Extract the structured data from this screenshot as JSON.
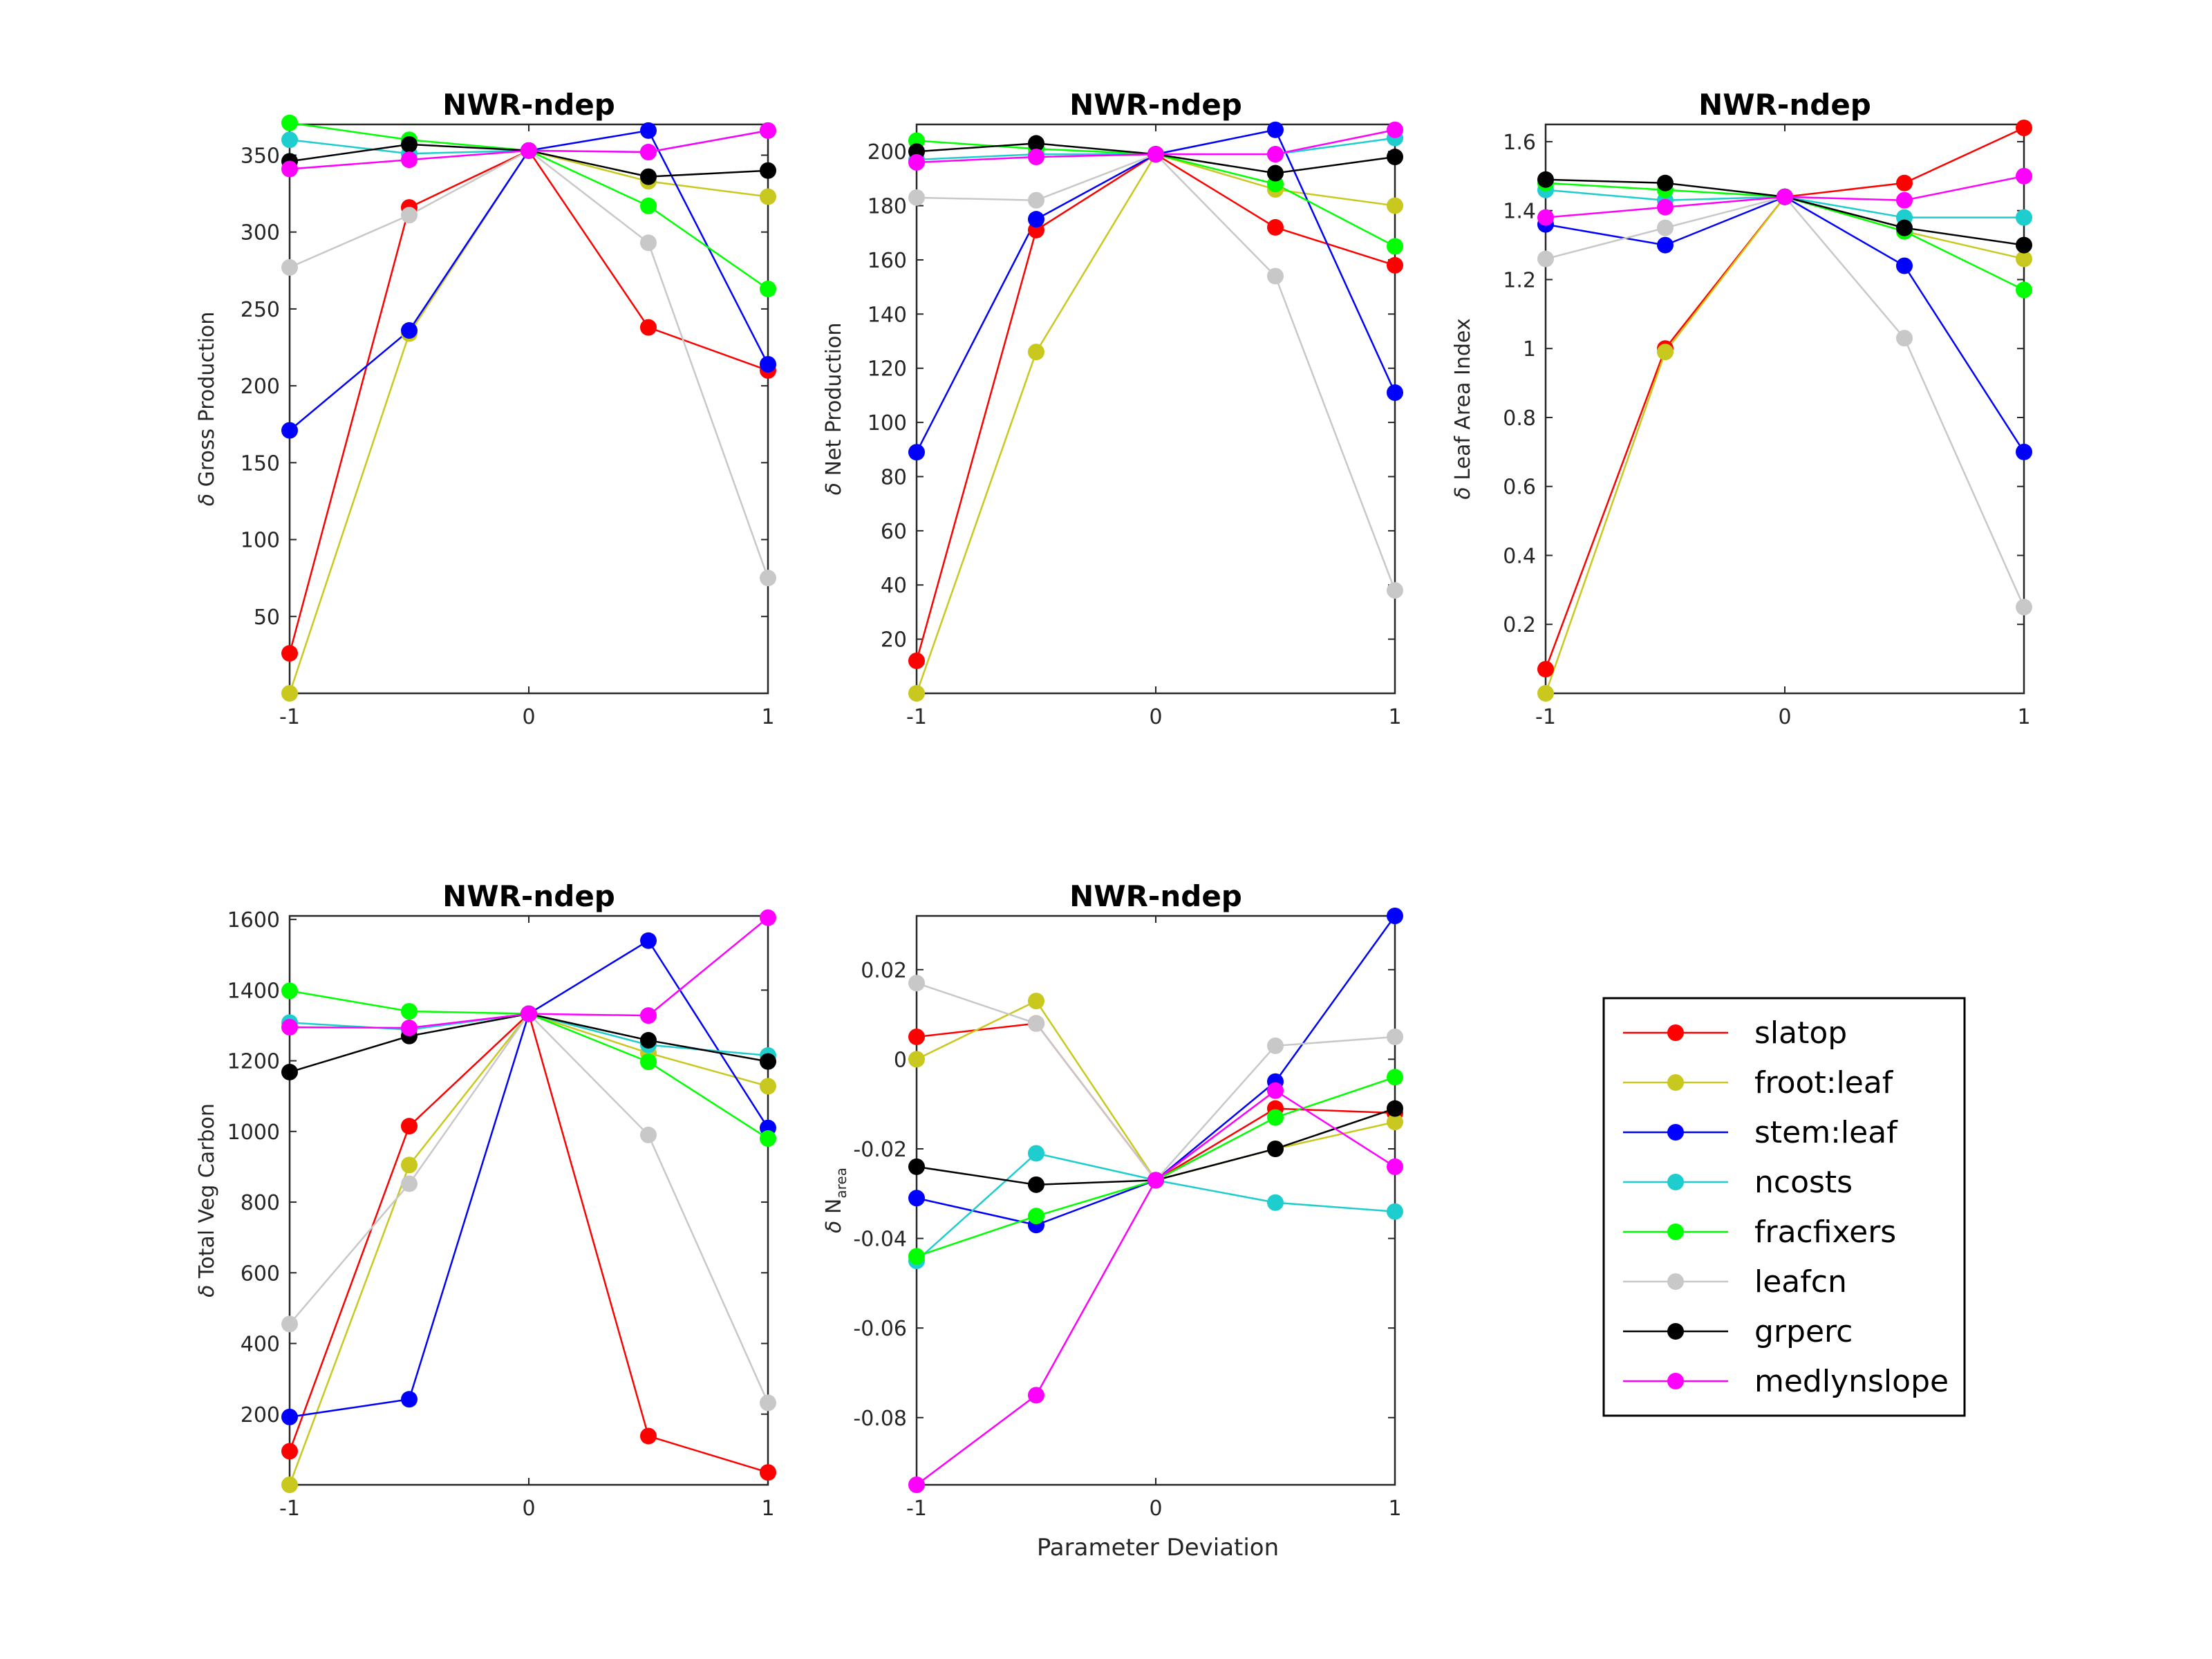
{
  "figure": {
    "xlabel": "Parameter Deviation"
  },
  "colors": {
    "slatop": "#ff0000",
    "froot:leaf": "#c8c81e",
    "stem:leaf": "#0000ff",
    "ncosts": "#1ecdcd",
    "fracfixers": "#00ff00",
    "leafcn": "#c8c8c8",
    "grperc": "#000000",
    "medlynslope": "#ff00ff"
  },
  "legend": {
    "placement": "bottom-right (empty sixth panel)",
    "entries": [
      "slatop",
      "froot:leaf",
      "stem:leaf",
      "ncosts",
      "fracfixers",
      "leafcn",
      "grperc",
      "medlynslope"
    ]
  },
  "chart_data": [
    {
      "id": "p1",
      "type": "line",
      "title": "NWR-ndep",
      "ylabel_prefix": "δ",
      "ylabel": "Gross Production",
      "ylabel_sub": "",
      "xlabel": "",
      "x": [
        -1,
        -0.5,
        0,
        0.5,
        1
      ],
      "xlim": [
        -1,
        1
      ],
      "xticks": [
        "-1",
        "0",
        "1"
      ],
      "xtick_values": [
        -1,
        0,
        1
      ],
      "ylim": [
        0,
        370
      ],
      "yticks": [
        "50",
        "100",
        "150",
        "200",
        "250",
        "300",
        "350"
      ],
      "ytick_values": [
        50,
        100,
        150,
        200,
        250,
        300,
        350
      ],
      "series": [
        {
          "name": "slatop",
          "values": [
            26,
            316,
            353,
            238,
            210
          ]
        },
        {
          "name": "froot:leaf",
          "values": [
            0,
            234,
            353,
            333,
            323
          ]
        },
        {
          "name": "stem:leaf",
          "values": [
            171,
            236,
            353,
            366,
            214
          ]
        },
        {
          "name": "ncosts",
          "values": [
            360,
            351,
            353,
            352,
            366
          ]
        },
        {
          "name": "fracfixers",
          "values": [
            371,
            360,
            353,
            317,
            263
          ]
        },
        {
          "name": "leafcn",
          "values": [
            277,
            311,
            353,
            293,
            75
          ]
        },
        {
          "name": "grperc",
          "values": [
            346,
            357,
            353,
            336,
            340
          ]
        },
        {
          "name": "medlynslope",
          "values": [
            341,
            347,
            353,
            352,
            366
          ]
        }
      ]
    },
    {
      "id": "p2",
      "type": "line",
      "title": "NWR-ndep",
      "ylabel_prefix": "δ",
      "ylabel": "Net Production",
      "ylabel_sub": "",
      "xlabel": "",
      "x": [
        -1,
        -0.5,
        0,
        0.5,
        1
      ],
      "xlim": [
        -1,
        1
      ],
      "xticks": [
        "-1",
        "0",
        "1"
      ],
      "xtick_values": [
        -1,
        0,
        1
      ],
      "ylim": [
        0,
        210
      ],
      "yticks": [
        "20",
        "40",
        "60",
        "80",
        "100",
        "120",
        "140",
        "160",
        "180",
        "200"
      ],
      "ytick_values": [
        20,
        40,
        60,
        80,
        100,
        120,
        140,
        160,
        180,
        200
      ],
      "series": [
        {
          "name": "slatop",
          "values": [
            12,
            171,
            199,
            172,
            158
          ]
        },
        {
          "name": "froot:leaf",
          "values": [
            0,
            126,
            199,
            186,
            180
          ]
        },
        {
          "name": "stem:leaf",
          "values": [
            89,
            175,
            199,
            208,
            111
          ]
        },
        {
          "name": "ncosts",
          "values": [
            197,
            199,
            199,
            199,
            205
          ]
        },
        {
          "name": "fracfixers",
          "values": [
            204,
            201,
            199,
            188,
            165
          ]
        },
        {
          "name": "leafcn",
          "values": [
            183,
            182,
            199,
            154,
            38
          ]
        },
        {
          "name": "grperc",
          "values": [
            200,
            203,
            199,
            192,
            198
          ]
        },
        {
          "name": "medlynslope",
          "values": [
            196,
            198,
            199,
            199,
            208
          ]
        }
      ]
    },
    {
      "id": "p3",
      "type": "line",
      "title": "NWR-ndep",
      "ylabel_prefix": "δ",
      "ylabel": "Leaf Area Index",
      "ylabel_sub": "",
      "xlabel": "",
      "x": [
        -1,
        -0.5,
        0,
        0.5,
        1
      ],
      "xlim": [
        -1,
        1
      ],
      "xticks": [
        "-1",
        "0",
        "1"
      ],
      "xtick_values": [
        -1,
        0,
        1
      ],
      "ylim": [
        0,
        1.65
      ],
      "yticks": [
        "0.2",
        "0.4",
        "0.6",
        "0.8",
        "1",
        "1.2",
        "1.4",
        "1.6"
      ],
      "ytick_values": [
        0.2,
        0.4,
        0.6,
        0.8,
        1.0,
        1.2,
        1.4,
        1.6
      ],
      "series": [
        {
          "name": "slatop",
          "values": [
            0.07,
            1.0,
            1.44,
            1.48,
            1.64
          ]
        },
        {
          "name": "froot:leaf",
          "values": [
            0.0,
            0.99,
            1.44,
            1.34,
            1.26
          ]
        },
        {
          "name": "stem:leaf",
          "values": [
            1.36,
            1.3,
            1.44,
            1.24,
            0.7
          ]
        },
        {
          "name": "ncosts",
          "values": [
            1.46,
            1.43,
            1.44,
            1.38,
            1.38
          ]
        },
        {
          "name": "fracfixers",
          "values": [
            1.48,
            1.46,
            1.44,
            1.34,
            1.17
          ]
        },
        {
          "name": "leafcn",
          "values": [
            1.26,
            1.35,
            1.44,
            1.03,
            0.25
          ]
        },
        {
          "name": "grperc",
          "values": [
            1.49,
            1.48,
            1.44,
            1.35,
            1.3
          ]
        },
        {
          "name": "medlynslope",
          "values": [
            1.38,
            1.41,
            1.44,
            1.43,
            1.5
          ]
        }
      ]
    },
    {
      "id": "p4",
      "type": "line",
      "title": "NWR-ndep",
      "ylabel_prefix": "δ",
      "ylabel": "Total Veg Carbon",
      "ylabel_sub": "",
      "xlabel": "",
      "x": [
        -1,
        -0.5,
        0,
        0.5,
        1
      ],
      "xlim": [
        -1,
        1
      ],
      "xticks": [
        "-1",
        "0",
        "1"
      ],
      "xtick_values": [
        -1,
        0,
        1
      ],
      "ylim": [
        0,
        1610
      ],
      "yticks": [
        "200",
        "400",
        "600",
        "800",
        "1000",
        "1200",
        "1400",
        "1600"
      ],
      "ytick_values": [
        200,
        400,
        600,
        800,
        1000,
        1200,
        1400,
        1600
      ],
      "series": [
        {
          "name": "slatop",
          "values": [
            95,
            1015,
            1333,
            138,
            35
          ]
        },
        {
          "name": "froot:leaf",
          "values": [
            0,
            905,
            1333,
            1222,
            1128
          ]
        },
        {
          "name": "stem:leaf",
          "values": [
            192,
            242,
            1333,
            1540,
            1010
          ]
        },
        {
          "name": "ncosts",
          "values": [
            1308,
            1288,
            1333,
            1245,
            1215
          ]
        },
        {
          "name": "fracfixers",
          "values": [
            1398,
            1340,
            1333,
            1197,
            980
          ]
        },
        {
          "name": "leafcn",
          "values": [
            455,
            852,
            1333,
            990,
            232
          ]
        },
        {
          "name": "grperc",
          "values": [
            1168,
            1270,
            1333,
            1258,
            1198
          ]
        },
        {
          "name": "medlynslope",
          "values": [
            1295,
            1293,
            1333,
            1328,
            1605
          ]
        }
      ]
    },
    {
      "id": "p5",
      "type": "line",
      "title": "NWR-ndep",
      "ylabel_prefix": "δ",
      "ylabel": "N",
      "ylabel_sub": "area",
      "xlabel": "Parameter Deviation",
      "x": [
        -1,
        -0.5,
        0,
        0.5,
        1
      ],
      "xlim": [
        -1,
        1
      ],
      "xticks": [
        "-1",
        "0",
        "1"
      ],
      "xtick_values": [
        -1,
        0,
        1
      ],
      "ylim": [
        -0.095,
        0.032
      ],
      "yticks": [
        "-0.08",
        "-0.06",
        "-0.04",
        "-0.02",
        "0",
        "0.02"
      ],
      "ytick_values": [
        -0.08,
        -0.06,
        -0.04,
        -0.02,
        0,
        0.02
      ],
      "series": [
        {
          "name": "slatop",
          "values": [
            0.005,
            0.008,
            -0.027,
            -0.011,
            -0.012
          ]
        },
        {
          "name": "froot:leaf",
          "values": [
            0.0,
            0.013,
            -0.027,
            -0.02,
            -0.014
          ]
        },
        {
          "name": "stem:leaf",
          "values": [
            -0.031,
            -0.037,
            -0.027,
            -0.005,
            0.032
          ]
        },
        {
          "name": "ncosts",
          "values": [
            -0.045,
            -0.021,
            -0.027,
            -0.032,
            -0.034
          ]
        },
        {
          "name": "fracfixers",
          "values": [
            -0.044,
            -0.035,
            -0.027,
            -0.013,
            -0.004
          ]
        },
        {
          "name": "leafcn",
          "values": [
            0.017,
            0.008,
            -0.027,
            0.003,
            0.005
          ]
        },
        {
          "name": "grperc",
          "values": [
            -0.024,
            -0.028,
            -0.027,
            -0.02,
            -0.011
          ]
        },
        {
          "name": "medlynslope",
          "values": [
            -0.095,
            -0.075,
            -0.027,
            -0.007,
            -0.024
          ]
        }
      ]
    }
  ]
}
